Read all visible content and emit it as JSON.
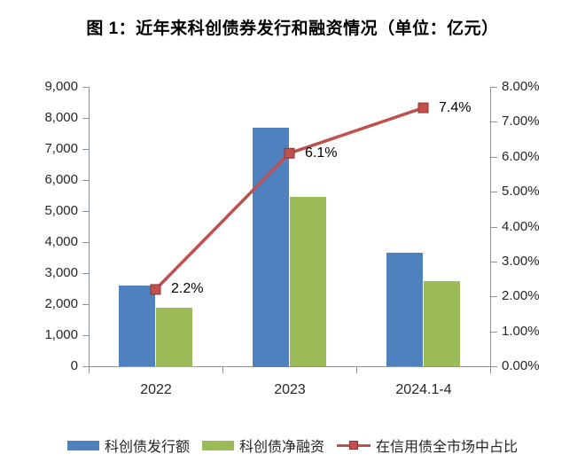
{
  "title": "图 1：近年来科创债券发行和融资情况（单位：亿元）",
  "colors": {
    "bar_issuance": "#4e81bd",
    "bar_net_financing": "#9bbb59",
    "line": "#c0504d",
    "marker_stroke": "#943634",
    "axis": "#8c9499",
    "tick_text": "#262626"
  },
  "chart_data": {
    "type": "bar",
    "subtype": "grouped bars with secondary-axis line",
    "title": "图 1：近年来科创债券发行和融资情况（单位：亿元）",
    "categories": [
      "2022",
      "2023",
      "2024.1-4"
    ],
    "series": [
      {
        "name": "科创债发行额",
        "type": "bar",
        "axis": "left",
        "color": "#4e81bd",
        "values": [
          2600,
          7700,
          3650
        ]
      },
      {
        "name": "科创债净融资",
        "type": "bar",
        "axis": "left",
        "color": "#9bbb59",
        "values": [
          1900,
          5450,
          2750
        ]
      },
      {
        "name": "在信用债全市场中占比",
        "type": "line",
        "axis": "right",
        "color": "#c0504d",
        "values": [
          2.2,
          6.1,
          7.4
        ],
        "point_labels": [
          "2.2%",
          "6.1%",
          "7.4%"
        ]
      }
    ],
    "left_axis": {
      "min": 0,
      "max": 9000,
      "step": 1000,
      "tick_labels": [
        "9,000",
        "8,000",
        "7,000",
        "6,000",
        "5,000",
        "4,000",
        "3,000",
        "2,000",
        "1,000",
        "0"
      ]
    },
    "right_axis": {
      "min": 0,
      "max": 8,
      "step": 1,
      "tick_labels": [
        "8.00%",
        "7.00%",
        "6.00%",
        "5.00%",
        "4.00%",
        "3.00%",
        "2.00%",
        "1.00%",
        "0.00%"
      ]
    },
    "grid": false,
    "legend_position": "bottom",
    "xlabel": "",
    "ylabel": ""
  },
  "legend": {
    "items": [
      {
        "label": "科创债发行额",
        "swatch": "bar-blue"
      },
      {
        "label": "科创债净融资",
        "swatch": "bar-green"
      },
      {
        "label": "在信用债全市场中占比",
        "swatch": "line-red-square-marker"
      }
    ]
  }
}
